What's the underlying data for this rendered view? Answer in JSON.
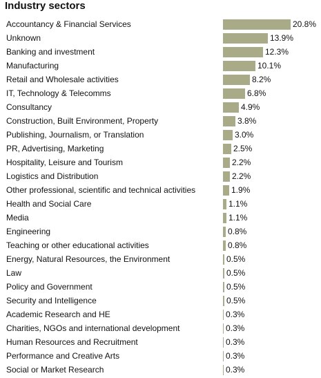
{
  "title": "Industry sectors",
  "colors": {
    "bar": "#a9aa87"
  },
  "chart_data": {
    "type": "bar",
    "orientation": "horizontal",
    "title": "Industry sectors",
    "categories": [
      "Accountancy & Financial Services",
      "Unknown",
      "Banking and investment",
      "Manufacturing",
      "Retail and Wholesale activities",
      "IT, Technology & Telecomms",
      "Consultancy",
      "Construction, Built Environment, Property",
      "Publishing, Journalism, or Translation",
      "PR, Advertising, Marketing",
      "Hospitality, Leisure and Tourism",
      "Logistics and Distribution",
      "Other professional, scientific and technical activities",
      "Health and Social Care",
      "Media",
      "Engineering",
      "Teaching or other educational activities",
      "Energy, Natural Resources, the Environment",
      "Law",
      "Policy and Government",
      "Security and Intelligence",
      "Academic Research and HE",
      "Charities, NGOs and international development",
      "Human Resources and Recruitment",
      "Performance and Creative Arts",
      "Social or Market Research"
    ],
    "values": [
      20.8,
      13.9,
      12.3,
      10.1,
      8.2,
      6.8,
      4.9,
      3.8,
      3.0,
      2.5,
      2.2,
      2.2,
      1.9,
      1.1,
      1.1,
      0.8,
      0.8,
      0.5,
      0.5,
      0.5,
      0.5,
      0.3,
      0.3,
      0.3,
      0.3,
      0.3
    ],
    "value_labels": [
      "20.8%",
      "13.9%",
      "12.3%",
      "10.1%",
      "8.2%",
      "6.8%",
      "4.9%",
      "3.8%",
      "3.0%",
      "2.5%",
      "2.2%",
      "2.2%",
      "1.9%",
      "1.1%",
      "1.1%",
      "0.8%",
      "0.8%",
      "0.5%",
      "0.5%",
      "0.5%",
      "0.5%",
      "0.3%",
      "0.3%",
      "0.3%",
      "0.3%",
      "0.3%"
    ],
    "unit": "%",
    "grid": false
  }
}
